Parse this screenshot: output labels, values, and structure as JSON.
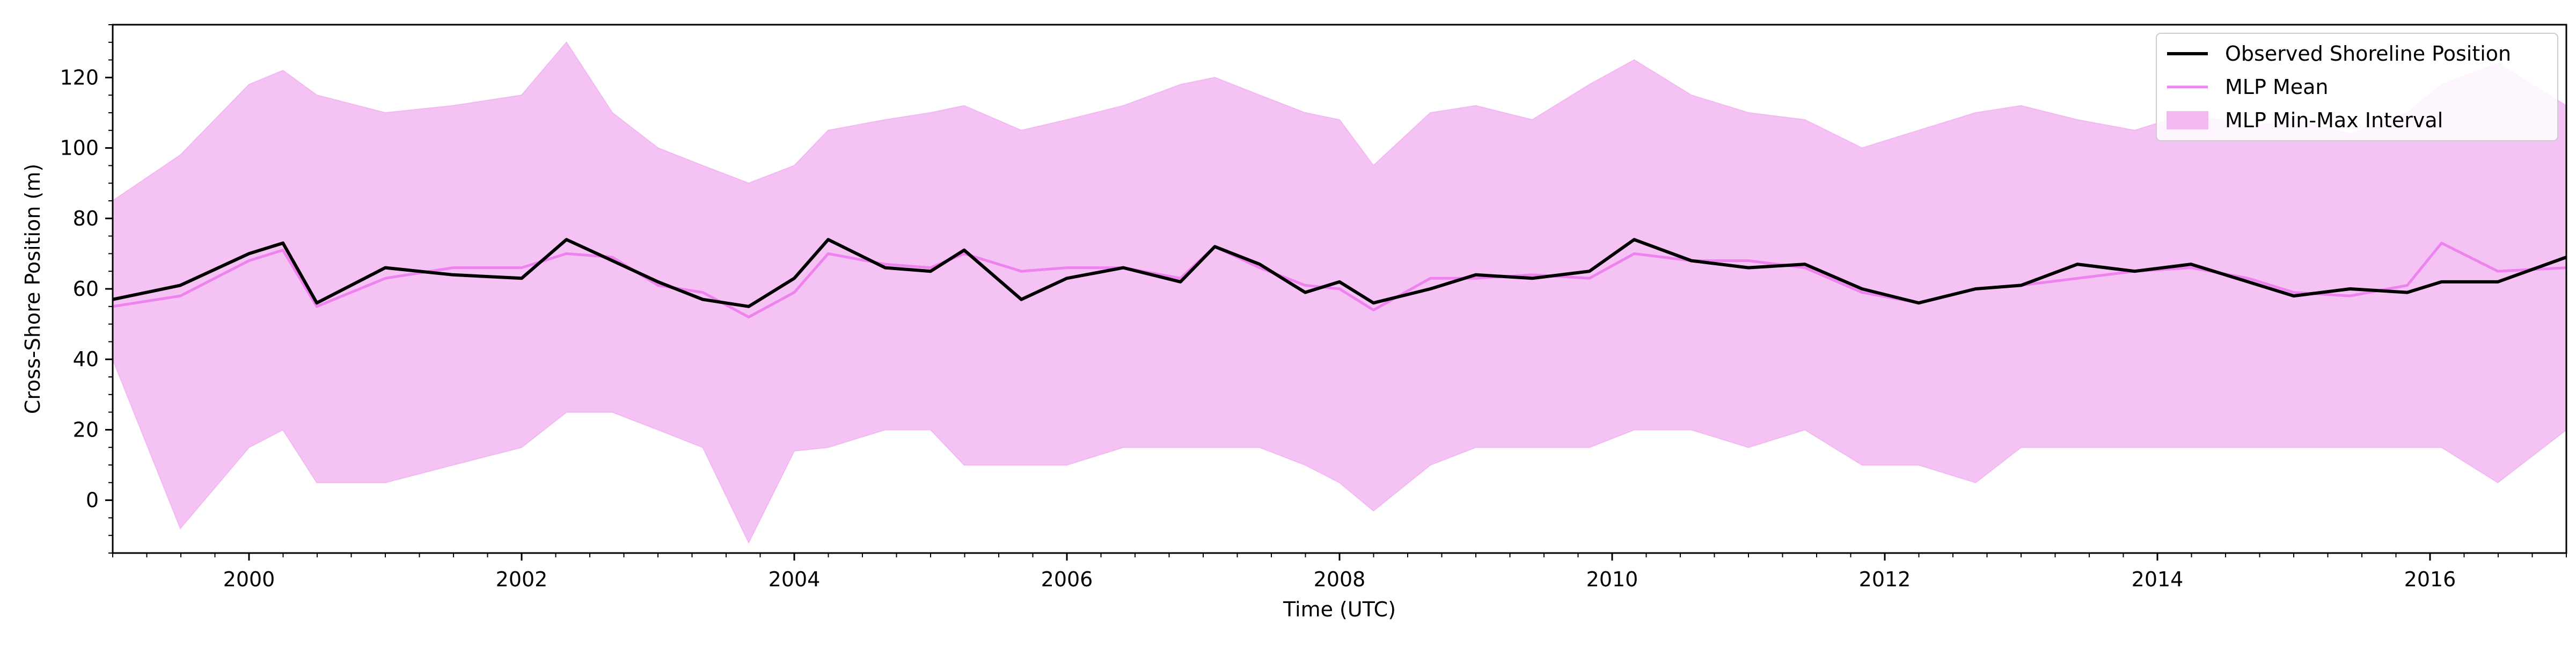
{
  "chart_data": {
    "type": "line",
    "xlabel": "Time (UTC)",
    "ylabel": "Cross-Shore Position (m)",
    "xlim": [
      "1999-01-01",
      "2017-01-01"
    ],
    "ylim": [
      -15,
      135
    ],
    "x_ticks": [
      "2000",
      "2002",
      "2004",
      "2006",
      "2008",
      "2010",
      "2012",
      "2014",
      "2016"
    ],
    "y_ticks": [
      0,
      20,
      40,
      60,
      80,
      100,
      120
    ],
    "grid": false,
    "legend_position": "top-right",
    "series": [
      {
        "name": "Observed Shoreline Position",
        "color": "#000000",
        "x": [
          "1999-01-01",
          "1999-07-01",
          "2000-01-01",
          "2000-04-01",
          "2000-07-01",
          "2001-01-01",
          "2001-07-01",
          "2002-01-01",
          "2002-05-01",
          "2002-09-01",
          "2003-01-01",
          "2003-05-01",
          "2003-09-01",
          "2004-01-01",
          "2004-04-01",
          "2004-09-01",
          "2005-01-01",
          "2005-04-01",
          "2005-09-01",
          "2006-01-01",
          "2006-06-01",
          "2006-11-01",
          "2007-02-01",
          "2007-06-01",
          "2007-10-01",
          "2008-01-01",
          "2008-04-01",
          "2008-09-01",
          "2009-01-01",
          "2009-06-01",
          "2009-11-01",
          "2010-03-01",
          "2010-08-01",
          "2011-01-01",
          "2011-06-01",
          "2011-11-01",
          "2012-04-01",
          "2012-09-01",
          "2013-01-01",
          "2013-06-01",
          "2013-11-01",
          "2014-04-01",
          "2014-09-01",
          "2015-01-01",
          "2015-06-01",
          "2015-11-01",
          "2016-02-01",
          "2016-07-01",
          "2017-01-01"
        ],
        "values": [
          57,
          61,
          70,
          73,
          56,
          66,
          64,
          63,
          74,
          68,
          62,
          57,
          55,
          63,
          74,
          66,
          65,
          71,
          57,
          63,
          66,
          62,
          72,
          67,
          59,
          62,
          56,
          60,
          64,
          63,
          65,
          74,
          68,
          66,
          67,
          60,
          56,
          60,
          61,
          67,
          65,
          67,
          62,
          58,
          60,
          59,
          62,
          62,
          69
        ]
      },
      {
        "name": "MLP Mean",
        "color": "#ee82ee",
        "x": [
          "1999-01-01",
          "1999-07-01",
          "2000-01-01",
          "2000-04-01",
          "2000-07-01",
          "2001-01-01",
          "2001-07-01",
          "2002-01-01",
          "2002-05-01",
          "2002-09-01",
          "2003-01-01",
          "2003-05-01",
          "2003-09-01",
          "2004-01-01",
          "2004-04-01",
          "2004-09-01",
          "2005-01-01",
          "2005-04-01",
          "2005-09-01",
          "2006-01-01",
          "2006-06-01",
          "2006-11-01",
          "2007-02-01",
          "2007-06-01",
          "2007-10-01",
          "2008-01-01",
          "2008-04-01",
          "2008-09-01",
          "2009-01-01",
          "2009-06-01",
          "2009-11-01",
          "2010-03-01",
          "2010-08-01",
          "2011-01-01",
          "2011-06-01",
          "2011-11-01",
          "2012-04-01",
          "2012-09-01",
          "2013-01-01",
          "2013-06-01",
          "2013-11-01",
          "2014-04-01",
          "2014-09-01",
          "2015-01-01",
          "2015-06-01",
          "2015-11-01",
          "2016-02-01",
          "2016-07-01",
          "2017-01-01"
        ],
        "values": [
          55,
          58,
          68,
          71,
          55,
          63,
          66,
          66,
          70,
          69,
          61,
          59,
          52,
          59,
          70,
          67,
          66,
          70,
          65,
          66,
          66,
          63,
          72,
          66,
          61,
          60,
          54,
          63,
          63,
          64,
          63,
          70,
          68,
          68,
          66,
          59,
          56,
          60,
          61,
          63,
          65,
          66,
          63,
          59,
          58,
          61,
          73,
          65,
          66
        ]
      },
      {
        "name": "MLP Min-Max Interval",
        "color": "#f2b8f2",
        "type": "area",
        "x": [
          "1999-01-01",
          "1999-07-01",
          "2000-01-01",
          "2000-04-01",
          "2000-07-01",
          "2001-01-01",
          "2001-07-01",
          "2002-01-01",
          "2002-05-01",
          "2002-09-01",
          "2003-01-01",
          "2003-05-01",
          "2003-09-01",
          "2004-01-01",
          "2004-04-01",
          "2004-09-01",
          "2005-01-01",
          "2005-04-01",
          "2005-09-01",
          "2006-01-01",
          "2006-06-01",
          "2006-11-01",
          "2007-02-01",
          "2007-06-01",
          "2007-10-01",
          "2008-01-01",
          "2008-04-01",
          "2008-09-01",
          "2009-01-01",
          "2009-06-01",
          "2009-11-01",
          "2010-03-01",
          "2010-08-01",
          "2011-01-01",
          "2011-06-01",
          "2011-11-01",
          "2012-04-01",
          "2012-09-01",
          "2013-01-01",
          "2013-06-01",
          "2013-11-01",
          "2014-04-01",
          "2014-09-01",
          "2015-01-01",
          "2015-06-01",
          "2015-11-01",
          "2016-02-01",
          "2016-07-01",
          "2017-01-01"
        ],
        "upper": [
          85,
          98,
          118,
          122,
          115,
          110,
          112,
          115,
          130,
          110,
          100,
          95,
          90,
          95,
          105,
          108,
          110,
          112,
          105,
          108,
          112,
          118,
          120,
          115,
          110,
          108,
          95,
          110,
          112,
          108,
          118,
          125,
          115,
          110,
          108,
          100,
          105,
          110,
          112,
          108,
          105,
          110,
          106,
          108,
          104,
          110,
          118,
          124,
          112
        ],
        "lower": [
          40,
          -8,
          15,
          20,
          5,
          5,
          10,
          15,
          25,
          25,
          20,
          15,
          -12,
          14,
          15,
          20,
          20,
          10,
          10,
          10,
          15,
          15,
          15,
          15,
          10,
          5,
          -3,
          10,
          15,
          15,
          15,
          20,
          20,
          15,
          20,
          10,
          10,
          5,
          15,
          15,
          15,
          15,
          15,
          15,
          15,
          15,
          15,
          5,
          20
        ]
      }
    ]
  }
}
